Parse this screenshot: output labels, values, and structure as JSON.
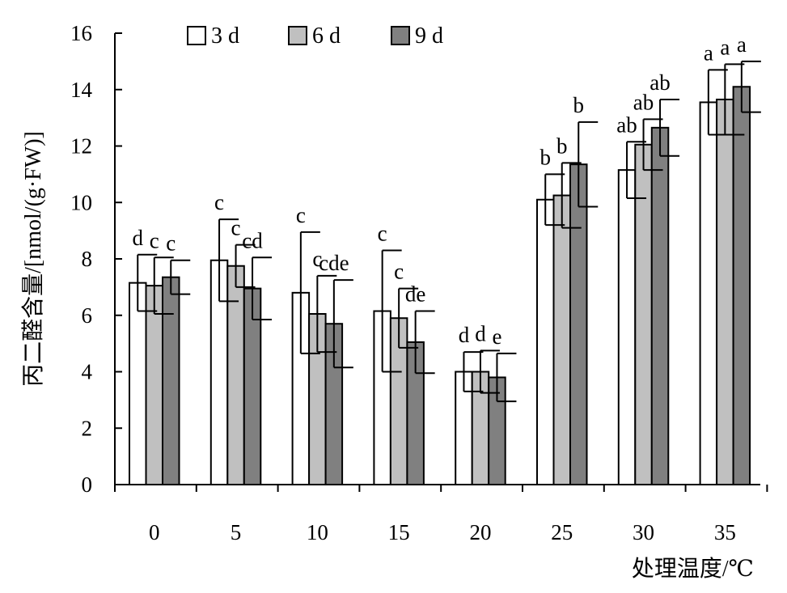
{
  "chart_data": {
    "type": "bar",
    "xlabel": "处理温度/℃",
    "ylabel": "丙二醛含量/[nmol/(g·FW)]",
    "ylim": [
      0,
      16
    ],
    "yticks": [
      0,
      2,
      4,
      6,
      8,
      10,
      12,
      14,
      16
    ],
    "categories": [
      "0",
      "5",
      "10",
      "15",
      "20",
      "25",
      "30",
      "35"
    ],
    "legend_position": "top-left",
    "grid": false,
    "series": [
      {
        "name": "3 d",
        "color": "#ffffff",
        "values": [
          7.15,
          7.95,
          6.8,
          6.15,
          4.0,
          10.1,
          11.15,
          13.55
        ],
        "error": [
          1.0,
          1.45,
          2.15,
          2.15,
          0.7,
          0.9,
          1.0,
          1.15
        ],
        "significance": [
          "d",
          "c",
          "c",
          "c",
          "d",
          "b",
          "ab",
          "a"
        ]
      },
      {
        "name": "6 d",
        "color": "#c0c0c0",
        "values": [
          7.05,
          7.75,
          6.05,
          5.9,
          4.0,
          10.25,
          12.05,
          13.65
        ],
        "error": [
          1.0,
          0.75,
          1.35,
          1.05,
          0.75,
          1.15,
          0.9,
          1.25
        ],
        "significance": [
          "c",
          "c",
          "c",
          "c",
          "d",
          "b",
          "ab",
          "a"
        ]
      },
      {
        "name": "9 d",
        "color": "#808080",
        "values": [
          7.35,
          6.95,
          5.7,
          5.05,
          3.8,
          11.35,
          12.65,
          14.1
        ],
        "error": [
          0.6,
          1.1,
          1.55,
          1.1,
          0.85,
          1.5,
          1.0,
          0.9
        ],
        "significance": [
          "c",
          "cd",
          "cde",
          "de",
          "e",
          "b",
          "ab",
          "a"
        ]
      }
    ]
  }
}
